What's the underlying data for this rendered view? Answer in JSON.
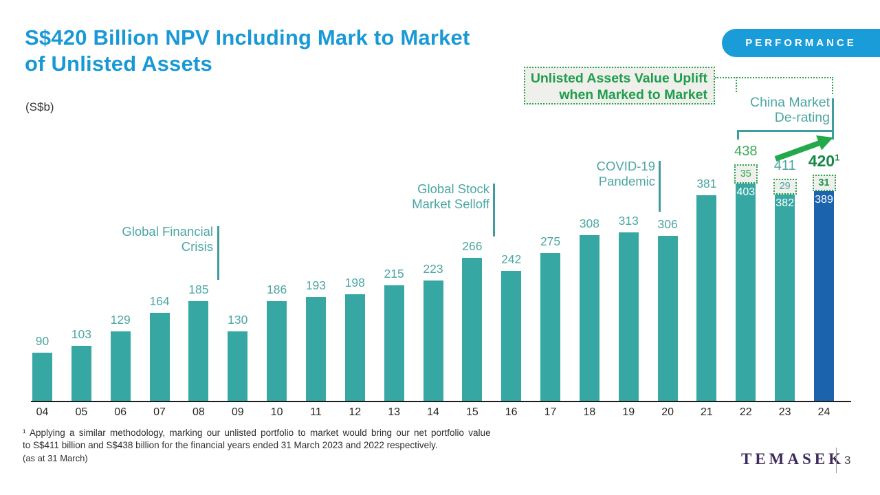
{
  "header": {
    "title_line1": "S$420 Billion NPV Including Mark to Market",
    "title_line2": "of Unlisted Assets",
    "badge": "PERFORMANCE"
  },
  "units_label": "(S$b)",
  "callout": {
    "line1": "Unlisted Assets Value Uplift",
    "line2": "when Marked to Market"
  },
  "chart_data": {
    "type": "bar",
    "unit": "S$b",
    "ylim": [
      0,
      450
    ],
    "grid": false,
    "categories": [
      "04",
      "05",
      "06",
      "07",
      "08",
      "09",
      "10",
      "11",
      "12",
      "13",
      "14",
      "15",
      "16",
      "17",
      "18",
      "19",
      "20",
      "21",
      "22",
      "23",
      "24"
    ],
    "series": [
      {
        "name": "net-portfolio-value",
        "values": [
          90,
          103,
          129,
          164,
          185,
          130,
          186,
          193,
          198,
          215,
          223,
          266,
          242,
          275,
          308,
          313,
          306,
          381,
          403,
          382,
          389
        ]
      },
      {
        "name": "unlisted-assets-mark-to-market-uplift",
        "values": [
          0,
          0,
          0,
          0,
          0,
          0,
          0,
          0,
          0,
          0,
          0,
          0,
          0,
          0,
          0,
          0,
          0,
          0,
          35,
          29,
          31
        ]
      }
    ],
    "overlays": [
      {
        "index": 18,
        "total_label": "438",
        "total_class": "t-green",
        "uplift_class": "u-green",
        "highlight": false
      },
      {
        "index": 19,
        "total_label": "411",
        "total_class": "t-teal",
        "uplift_class": "u-teal",
        "highlight": false
      },
      {
        "index": 20,
        "total_label": "420",
        "total_sup": "1",
        "total_class": "t-dark",
        "uplift_class": "u-bold",
        "highlight": true
      }
    ],
    "annotations": {
      "gfc": {
        "line1": "Global Financial",
        "line2": "Crisis"
      },
      "selloff": {
        "line1": "Global Stock",
        "line2": "Market Selloff"
      },
      "covid": {
        "line1": "COVID-19",
        "line2": "Pandemic"
      },
      "china": {
        "line1": "China Market",
        "line2": "De-rating"
      }
    },
    "colors": {
      "bar_teal": "#36a7a2",
      "bar_highlight_blue": "#1b64ad",
      "uplift_box_bg": "#efefec",
      "green": "#2da34e",
      "dark_green": "#168843",
      "teal_text": "#4ba6a3",
      "accent_blue": "#1899d6"
    }
  },
  "footnote": {
    "line1": "¹ Applying a similar methodology, marking our unlisted portfolio to market would bring our net portfolio value",
    "line2": "to S$411 billion and S$438 billion for the financial years ended 31 March 2023 and 2022 respectively."
  },
  "footer": {
    "as_at": "(as at 31 March)",
    "logo": "TEMASEK",
    "page": "3"
  }
}
